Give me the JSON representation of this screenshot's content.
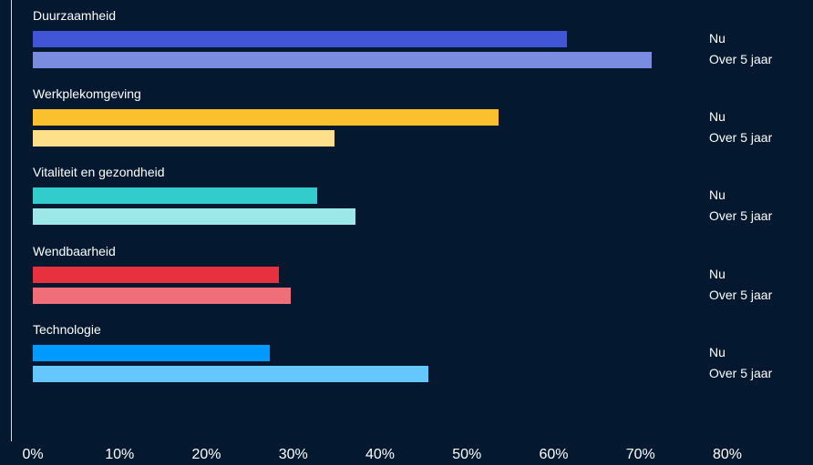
{
  "chart_data": {
    "type": "bar",
    "orientation": "horizontal",
    "categories": [
      "Duurzaamheid",
      "Werkplekomgeving",
      "Vitaliteit en gezondheid",
      "Wendbaarheid",
      "Technologie"
    ],
    "series_labels": [
      "Nu",
      "Over 5 jaar"
    ],
    "values": [
      [
        61.5,
        71.3
      ],
      [
        53.7,
        34.8
      ],
      [
        32.8,
        37.2
      ],
      [
        28.3,
        29.7
      ],
      [
        27.3,
        45.6
      ]
    ],
    "colors": [
      [
        "#4056d6",
        "#7a8ce0"
      ],
      [
        "#fbc02d",
        "#ffe08a"
      ],
      [
        "#33cccc",
        "#9ce8e8"
      ],
      [
        "#e8313f",
        "#f06e79"
      ],
      [
        "#0099ff",
        "#66c7ff"
      ]
    ],
    "xlim": [
      0,
      80
    ],
    "xticks": [
      "0%",
      "10%",
      "20%",
      "30%",
      "40%",
      "50%",
      "60%",
      "70%",
      "80%"
    ],
    "grid": false,
    "legend": "none"
  }
}
